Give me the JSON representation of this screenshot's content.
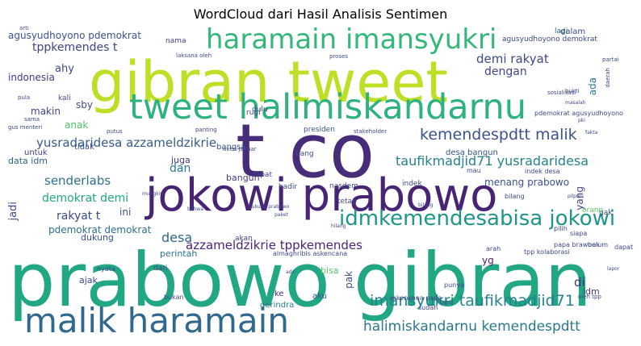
{
  "title": "WordCloud dari Hasil Analisis Sentimen",
  "colors": {
    "background": "#ffffff",
    "palette": "viridis"
  },
  "words": [
    {
      "text": "prabowo gibran",
      "color": "#21a784",
      "size_rank": 1
    },
    {
      "text": "t co",
      "color": "#472c7a",
      "size_rank": 2
    },
    {
      "text": "gibran tweet",
      "color": "#bddf26",
      "size_rank": 3
    },
    {
      "text": "jokowi prabowo",
      "color": "#482475",
      "size_rank": 4
    },
    {
      "text": "tweet halimiskandarnu",
      "color": "#2db27d",
      "size_rank": 5
    },
    {
      "text": "malik haramain",
      "color": "#31688e",
      "size_rank": 6
    },
    {
      "text": "haramain imansyukri",
      "color": "#35b779",
      "size_rank": 7
    },
    {
      "text": "idmkemendesabisa jokowi",
      "color": "#1f958b",
      "size_rank": 8
    },
    {
      "text": "kemendespdtt malik",
      "color": "#3b528b",
      "size_rank": 9
    },
    {
      "text": "imansyukri taufikmadjid71",
      "color": "#26828e",
      "size_rank": 10
    },
    {
      "text": "halimiskandarnu kemendespdtt",
      "color": "#2a788e",
      "size_rank": 11
    },
    {
      "text": "yusradaridesa azzameldzikrie",
      "color": "#375b8d",
      "size_rank": 12
    },
    {
      "text": "taufikmadjid71 yusradaridesa",
      "color": "#26818e",
      "size_rank": 13
    },
    {
      "text": "azzameldzikrie tppkemendes",
      "color": "#482576",
      "size_rank": 14
    },
    {
      "text": "demi rakyat",
      "color": "#3e4989",
      "size_rank": 15
    },
    {
      "text": "senderlabs",
      "color": "#2c728e",
      "size_rank": 16
    },
    {
      "text": "demokrat demi",
      "color": "#22a884",
      "size_rank": 17
    },
    {
      "text": "rakyat t",
      "color": "#3e4a89",
      "size_rank": 18
    },
    {
      "text": "tppkemendes t",
      "color": "#414487",
      "size_rank": 19
    },
    {
      "text": "agusyudhoyono pdemokrat",
      "color": "#3b528b",
      "size_rank": 20
    },
    {
      "text": "pdemokrat demokrat",
      "color": "#2e6f8e",
      "size_rank": 21
    },
    {
      "text": "desa",
      "color": "#31688e",
      "size_rank": 22
    },
    {
      "text": "dengan",
      "color": "#3f4788",
      "size_rank": 23
    },
    {
      "text": "indonesia",
      "color": "#443b84",
      "size_rank": 24
    },
    {
      "text": "ahy",
      "color": "#3e4c8a",
      "size_rank": 25
    },
    {
      "text": "dan",
      "color": "#2a768e",
      "size_rank": 26
    },
    {
      "text": "menang prabowo",
      "color": "#3a538b",
      "size_rank": 27
    },
    {
      "text": "anak",
      "color": "#4ac16d",
      "size_rank": 28
    },
    {
      "text": "sby",
      "color": "#3d4d8a",
      "size_rank": 29
    },
    {
      "text": "makin",
      "color": "#404387",
      "size_rank": 30
    },
    {
      "text": "jadi",
      "color": "#3e4989",
      "size_rank": 31
    },
    {
      "text": "ini",
      "color": "#3b528b",
      "size_rank": 32
    },
    {
      "text": "di",
      "color": "#46327e",
      "size_rank": 33
    },
    {
      "text": "idm",
      "color": "#443983",
      "size_rank": 34
    },
    {
      "text": "yg",
      "color": "#482173",
      "size_rank": 35
    },
    {
      "text": "ada",
      "color": "#2a788e",
      "size_rank": 36
    },
    {
      "text": "yang",
      "color": "#3f4788",
      "size_rank": 37
    },
    {
      "text": "bangun",
      "color": "#433e85",
      "size_rank": 38
    },
    {
      "text": "juga",
      "color": "#453781",
      "size_rank": 39
    },
    {
      "text": "data idm",
      "color": "#35608d",
      "size_rank": 40
    },
    {
      "text": "dukung",
      "color": "#3c4f8a",
      "size_rank": 41
    },
    {
      "text": "perintah",
      "color": "#2c728e",
      "size_rank": 42
    },
    {
      "text": "tidak",
      "color": "#3b528b",
      "size_rank": 43
    },
    {
      "text": "untuk",
      "color": "#443983",
      "size_rank": 44
    },
    {
      "text": "ajak",
      "color": "#3f4788",
      "size_rank": 45
    },
    {
      "text": "bisa",
      "color": "#5ec962",
      "size_rank": 46
    },
    {
      "text": "aku",
      "color": "#38588c",
      "size_rank": 47
    },
    {
      "text": "ke",
      "color": "#482677",
      "size_rank": 48
    },
    {
      "text": "gerindra",
      "color": "#2a788e",
      "size_rank": 49
    },
    {
      "text": "pak",
      "color": "#3b528b",
      "size_rank": 50
    },
    {
      "text": "desa bangun",
      "color": "#3b528b",
      "size_rank": 51
    },
    {
      "text": "bangsa",
      "color": "#3b528b",
      "size_rank": 52
    },
    {
      "text": "dalam",
      "color": "#3e4989",
      "size_rank": 53
    },
    {
      "text": "lagi",
      "color": "#31688e",
      "size_rank": 54
    },
    {
      "text": "agusyudhoyono demokrat",
      "color": "#3e4989",
      "size_rank": 55
    },
    {
      "text": "nama",
      "color": "#433e85",
      "size_rank": 56
    },
    {
      "text": "kali",
      "color": "#3e4a89",
      "size_rank": 57
    },
    {
      "text": "presiden",
      "color": "#3b528b",
      "size_rank": 58
    },
    {
      "text": "dulu",
      "color": "#3e4989",
      "size_rank": 59
    },
    {
      "text": "rugi",
      "color": "#3e4989",
      "size_rank": 60
    },
    {
      "text": "pdemokrat agusyudhoyono",
      "color": "#3e4989",
      "size_rank": 61
    },
    {
      "text": "indek desa",
      "color": "#3e4989",
      "size_rank": 62
    },
    {
      "text": "bilang",
      "color": "#3e4989",
      "size_rank": 63
    },
    {
      "text": "mau",
      "color": "#3e4989",
      "size_rank": 64
    },
    {
      "text": "gak",
      "color": "#3e4989",
      "size_rank": 65
    },
    {
      "text": "siapa",
      "color": "#3e4989",
      "size_rank": 66
    },
    {
      "text": "pilih",
      "color": "#3e4989",
      "size_rank": 67
    },
    {
      "text": "papa brawook",
      "color": "#3e4989",
      "size_rank": 68
    },
    {
      "text": "belum",
      "color": "#3e4989",
      "size_rank": 69
    },
    {
      "text": "dapat",
      "color": "#3e4989",
      "size_rank": 70
    },
    {
      "text": "arah",
      "color": "#3e4989",
      "size_rank": 71
    },
    {
      "text": "tpp kolaborasi",
      "color": "#3e4989",
      "size_rank": 72
    },
    {
      "text": "punya",
      "color": "#3e4989",
      "size_rank": 73
    },
    {
      "text": "askencana papa",
      "color": "#3e4989",
      "size_rank": 74
    },
    {
      "text": "sudah",
      "color": "#3e4989",
      "size_rank": 75
    },
    {
      "text": "orang",
      "color": "#5ec962",
      "size_rank": 76
    },
    {
      "text": "nasdem",
      "color": "#3e4989",
      "size_rank": 77
    },
    {
      "text": "indek",
      "color": "#3e4989",
      "size_rank": 78
    },
    {
      "text": "hadir",
      "color": "#3e4989",
      "size_rank": 79
    },
    {
      "text": "bang",
      "color": "#3e4989",
      "size_rank": 80
    },
    {
      "text": "rapat",
      "color": "#3e4989",
      "size_rank": 81
    },
    {
      "text": "akan",
      "color": "#3e4989",
      "size_rank": 82
    },
    {
      "text": "tetap",
      "color": "#3e4989",
      "size_rank": 83
    },
    {
      "text": "nyata",
      "color": "#3e4989",
      "size_rank": 84
    },
    {
      "text": "bukan",
      "color": "#3e4989",
      "size_rank": 85
    },
    {
      "text": "dari",
      "color": "#3e4989",
      "size_rank": 86
    },
    {
      "text": "almaghribis askencana",
      "color": "#3e4989",
      "size_rank": 87
    },
    {
      "text": "gus menteri",
      "color": "#3e4989",
      "size_rank": 88
    },
    {
      "text": "pula",
      "color": "#3e4989",
      "size_rank": 89
    },
    {
      "text": "sama",
      "color": "#3e4989",
      "size_rank": 90
    },
    {
      "text": "putus",
      "color": "#3e4989",
      "size_rank": 91
    },
    {
      "text": "stakeholder",
      "color": "#3e4989",
      "size_rank": 92
    },
    {
      "text": "panting",
      "color": "#3e4989",
      "size_rank": 93
    },
    {
      "text": "sosialisasi",
      "color": "#3e4989",
      "size_rank": 94
    },
    {
      "text": "bukti",
      "color": "#3e4989",
      "size_rank": 95
    },
    {
      "text": "proses",
      "color": "#3e4989",
      "size_rank": 96
    },
    {
      "text": "laksana oleh",
      "color": "#3e4989",
      "size_rank": 97
    },
    {
      "text": "arti",
      "color": "#3e4989",
      "size_rank": 98
    },
    {
      "text": "tahu",
      "color": "#3e4989",
      "size_rank": 99
    },
    {
      "text": "oleh tpp",
      "color": "#3e4989",
      "size_rank": 100
    },
    {
      "text": "lapor",
      "color": "#3e4989",
      "size_rank": 101
    },
    {
      "text": "pilpres",
      "color": "#3e4989",
      "size_rank": 102
    },
    {
      "text": "masalah",
      "color": "#3e4989",
      "size_rank": 103
    },
    {
      "text": "daerah",
      "color": "#3e4989",
      "size_rank": 104
    },
    {
      "text": "partai",
      "color": "#3e4989",
      "size_rank": 105
    },
    {
      "text": "pki",
      "color": "#3e4989",
      "size_rank": 106
    },
    {
      "text": "fakta",
      "color": "#3e4989",
      "size_rank": 107
    },
    {
      "text": "aven januar",
      "color": "#3e4989",
      "size_rank": 108
    },
    {
      "text": "dukung prabowo",
      "color": "#3e4989",
      "size_rank": 109
    },
    {
      "text": "bahwa",
      "color": "#3e4989",
      "size_rank": 110
    },
    {
      "text": "bilang",
      "color": "#3e4989",
      "size_rank": 111
    },
    {
      "text": "mungkin",
      "color": "#3e4989",
      "size_rank": 112
    },
    {
      "text": "paket",
      "color": "#3e4989",
      "size_rank": 113
    },
    {
      "text": "hilang",
      "color": "#3e4989",
      "size_rank": 114
    },
    {
      "text": "adil",
      "color": "#3e4989",
      "size_rank": 115
    }
  ]
}
